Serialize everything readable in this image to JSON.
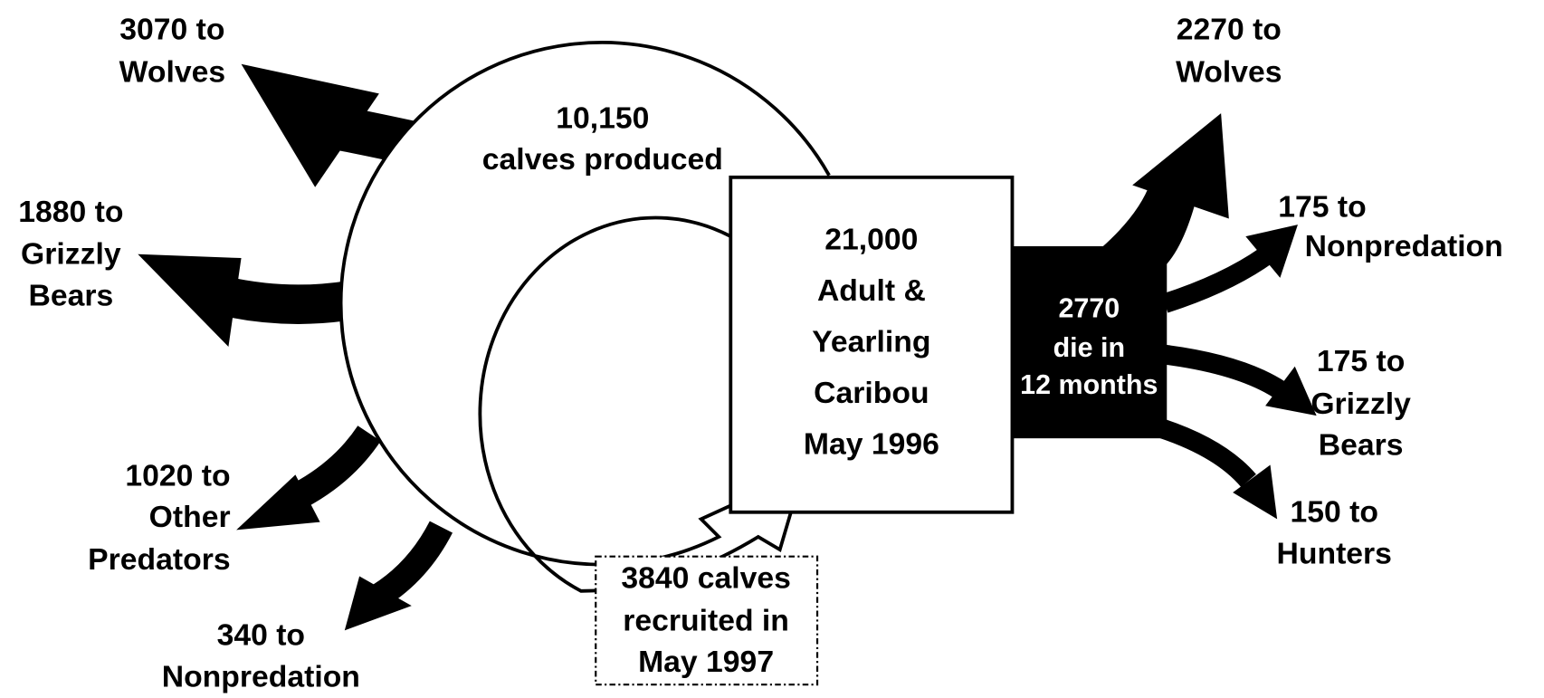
{
  "nodes": [
    {
      "lines": [
        "3070 to",
        "Wolves"
      ]
    },
    {
      "lines": [
        "10,150",
        "calves produced"
      ]
    },
    {
      "lines": [
        "1880 to",
        "Grizzly",
        "Bears"
      ]
    },
    {
      "lines": [
        "1020 to",
        "Other",
        "Predators"
      ]
    },
    {
      "lines": [
        "340 to",
        "Nonpredation"
      ]
    },
    {
      "lines": [
        "21,000",
        "Adult &",
        "Yearling",
        "Caribou",
        "May 1996"
      ]
    },
    {
      "lines": [
        "2270 to",
        "Wolves"
      ]
    },
    {
      "lines": [
        "2770",
        "die in",
        "12 months"
      ]
    },
    {
      "lines": [
        "175 to",
        "Nonpredation"
      ]
    },
    {
      "lines": [
        "175 to",
        "Grizzly",
        "Bears"
      ]
    },
    {
      "lines": [
        "150 to",
        "Hunters"
      ]
    },
    {
      "lines": [
        "3840 calves",
        "recruited in",
        "May 1997"
      ]
    }
  ]
}
